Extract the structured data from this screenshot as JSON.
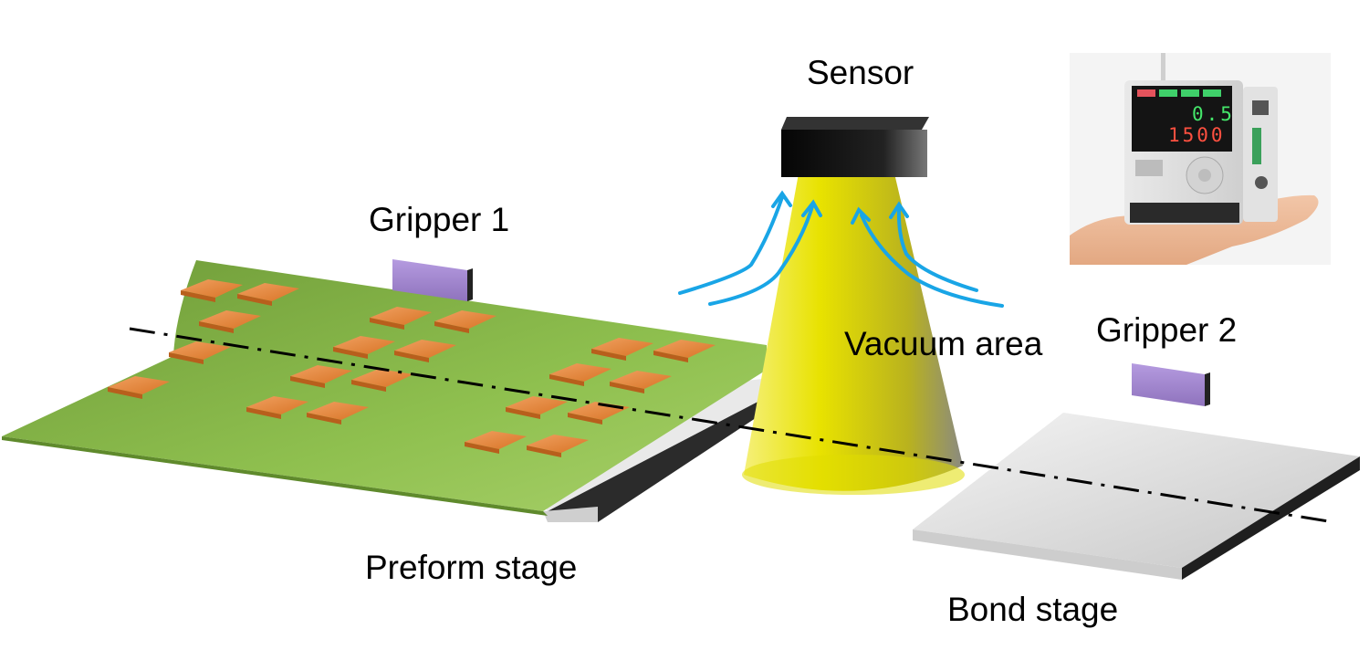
{
  "labels": {
    "sensor": "Sensor",
    "gripper1": "Gripper 1",
    "gripper2": "Gripper 2",
    "vacuum_area": "Vacuum area",
    "preform_stage": "Preform stage",
    "bond_stage": "Bond stage"
  },
  "device": {
    "readout_top": "0.5",
    "readout_bottom": "1500"
  },
  "colors": {
    "preform_sheet": "#8bbb4c",
    "chip": "#e8873c",
    "gripper": "#9a7fc6",
    "vacuum_cone": "#e6e000",
    "airflow_arrow": "#1aa6e8",
    "sensor_body": "#111111",
    "stage_plate": "#dcdcdc"
  }
}
